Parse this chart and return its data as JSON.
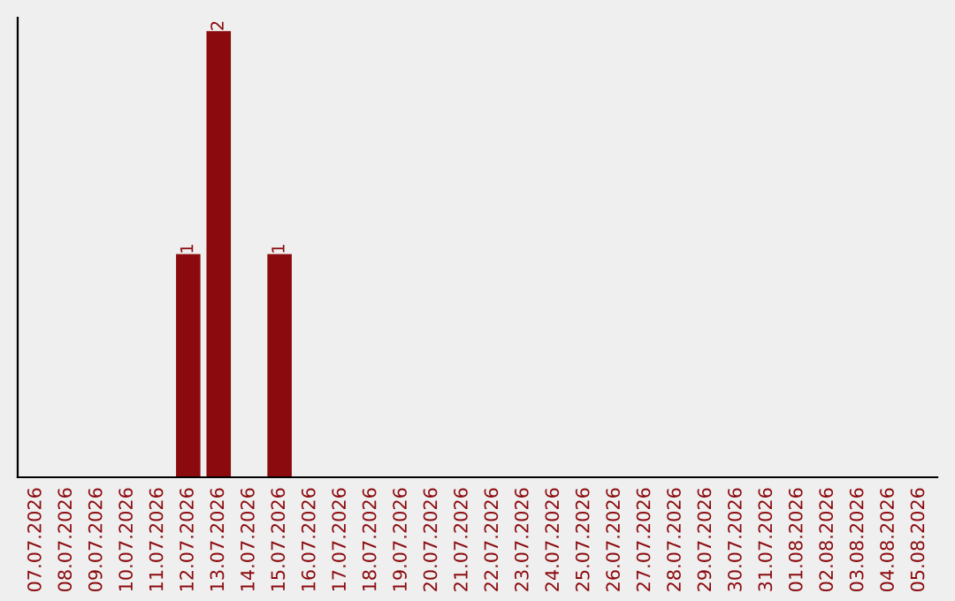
{
  "chart_data": {
    "type": "bar",
    "categories": [
      "07.07.2026",
      "08.07.2026",
      "09.07.2026",
      "10.07.2026",
      "11.07.2026",
      "12.07.2026",
      "13.07.2026",
      "14.07.2026",
      "15.07.2026",
      "16.07.2026",
      "17.07.2026",
      "18.07.2026",
      "19.07.2026",
      "20.07.2026",
      "21.07.2026",
      "22.07.2026",
      "23.07.2026",
      "24.07.2026",
      "25.07.2026",
      "26.07.2026",
      "27.07.2026",
      "28.07.2026",
      "29.07.2026",
      "30.07.2026",
      "31.07.2026",
      "01.08.2026",
      "02.08.2026",
      "03.08.2026",
      "04.08.2026",
      "05.08.2026"
    ],
    "values": [
      0,
      0,
      0,
      0,
      0,
      1,
      2,
      0,
      1,
      0,
      0,
      0,
      0,
      0,
      0,
      0,
      0,
      0,
      0,
      0,
      0,
      0,
      0,
      0,
      0,
      0,
      0,
      0,
      0,
      0
    ],
    "value_labels": [
      null,
      null,
      null,
      null,
      null,
      "1",
      "2",
      null,
      "1",
      null,
      null,
      null,
      null,
      null,
      null,
      null,
      null,
      null,
      null,
      null,
      null,
      null,
      null,
      null,
      null,
      null,
      null,
      null,
      null,
      null
    ],
    "color": "#8b0a0e",
    "tick_labels": "x",
    "grid": false,
    "legend": false
  }
}
